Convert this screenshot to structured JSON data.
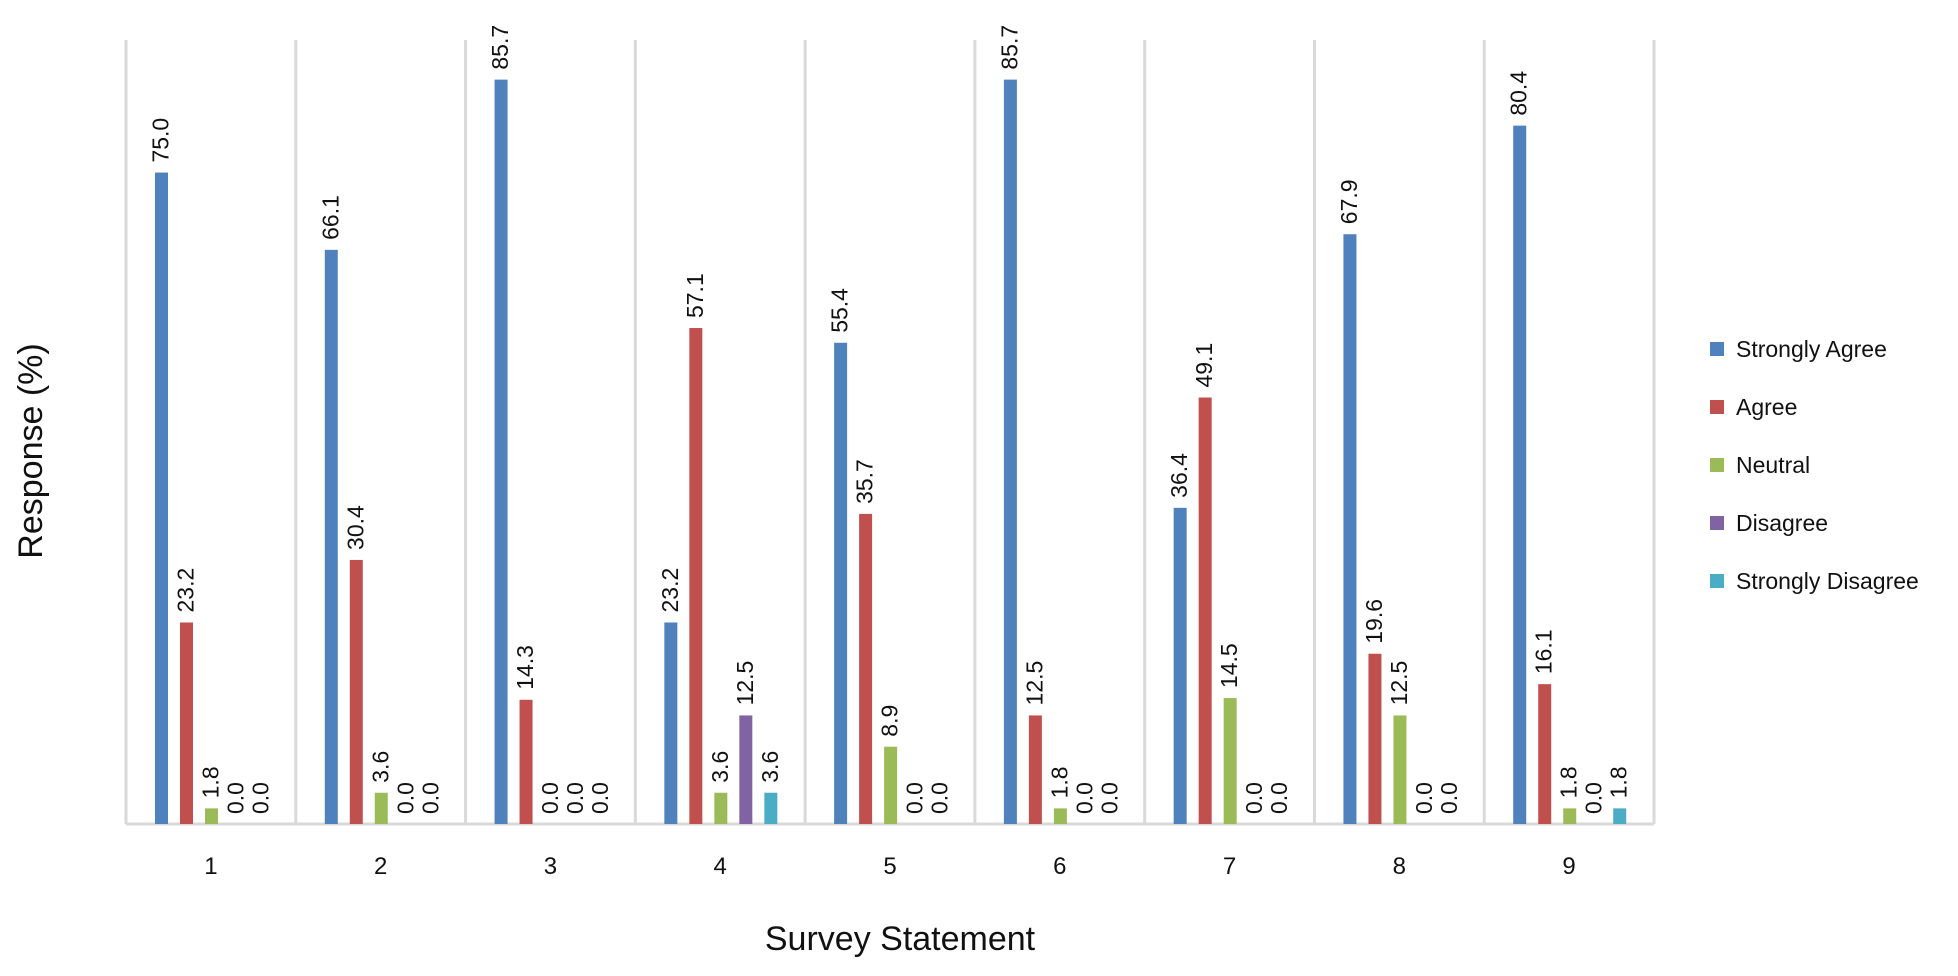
{
  "chart_data": {
    "type": "bar",
    "title": "",
    "xlabel": "Survey Statement",
    "ylabel": "Response (%)",
    "ylim": [
      0,
      90
    ],
    "grid": "vertical separators between categories",
    "legend_position": "right",
    "categories": [
      "1",
      "2",
      "3",
      "4",
      "5",
      "6",
      "7",
      "8",
      "9"
    ],
    "series": [
      {
        "name": "Strongly Agree",
        "color": "#4F81BD",
        "values": [
          75.0,
          66.1,
          85.7,
          23.2,
          55.4,
          85.7,
          36.4,
          67.9,
          80.4
        ],
        "labels": [
          "75.0",
          "66.1",
          "85.7",
          "23.2",
          "55.4",
          "85.7",
          "36.4",
          "67.9",
          "80.4"
        ]
      },
      {
        "name": "Agree",
        "color": "#C0504D",
        "values": [
          23.2,
          30.4,
          14.3,
          57.1,
          35.7,
          12.5,
          49.1,
          19.6,
          16.1
        ],
        "labels": [
          "23.2",
          "30.4",
          "14.3",
          "57.1",
          "35.7",
          "12.5",
          "49.1",
          "19.6",
          "16.1"
        ]
      },
      {
        "name": "Neutral",
        "color": "#9BBB59",
        "values": [
          1.8,
          3.6,
          0.0,
          3.6,
          8.9,
          1.8,
          14.5,
          12.5,
          1.8
        ],
        "labels": [
          "1.8",
          "3.6",
          "0.0",
          "3.6",
          "8.9",
          "1.8",
          "14.5",
          "12.5",
          "1.8"
        ]
      },
      {
        "name": "Disagree",
        "color": "#8064A2",
        "values": [
          0.0,
          0.0,
          0.0,
          12.5,
          0.0,
          0.0,
          0.0,
          0.0,
          0.0
        ],
        "labels": [
          "0.0",
          "0.0",
          "0.0",
          "12.5",
          "0.0",
          "0.0",
          "0.0",
          "0.0",
          "0.0"
        ]
      },
      {
        "name": "Strongly Disagree",
        "color": "#4BACC6",
        "values": [
          0.0,
          0.0,
          0.0,
          3.6,
          0.0,
          0.0,
          0.0,
          0.0,
          1.8
        ],
        "labels": [
          "0.0",
          "0.0",
          "0.0",
          "3.6",
          "0.0",
          "0.0",
          "0.0",
          "0.0",
          "1.8"
        ]
      }
    ],
    "label_visibility": [
      [
        true,
        true,
        true,
        true,
        true,
        true,
        true,
        true,
        true
      ],
      [
        true,
        true,
        true,
        true,
        true,
        true,
        true,
        true,
        true
      ],
      [
        true,
        true,
        true,
        true,
        true,
        true,
        true,
        true,
        true
      ],
      [
        true,
        true,
        true,
        true,
        true,
        true,
        true,
        true,
        true
      ],
      [
        true,
        true,
        true,
        true,
        true,
        true,
        true,
        true,
        true
      ]
    ]
  }
}
